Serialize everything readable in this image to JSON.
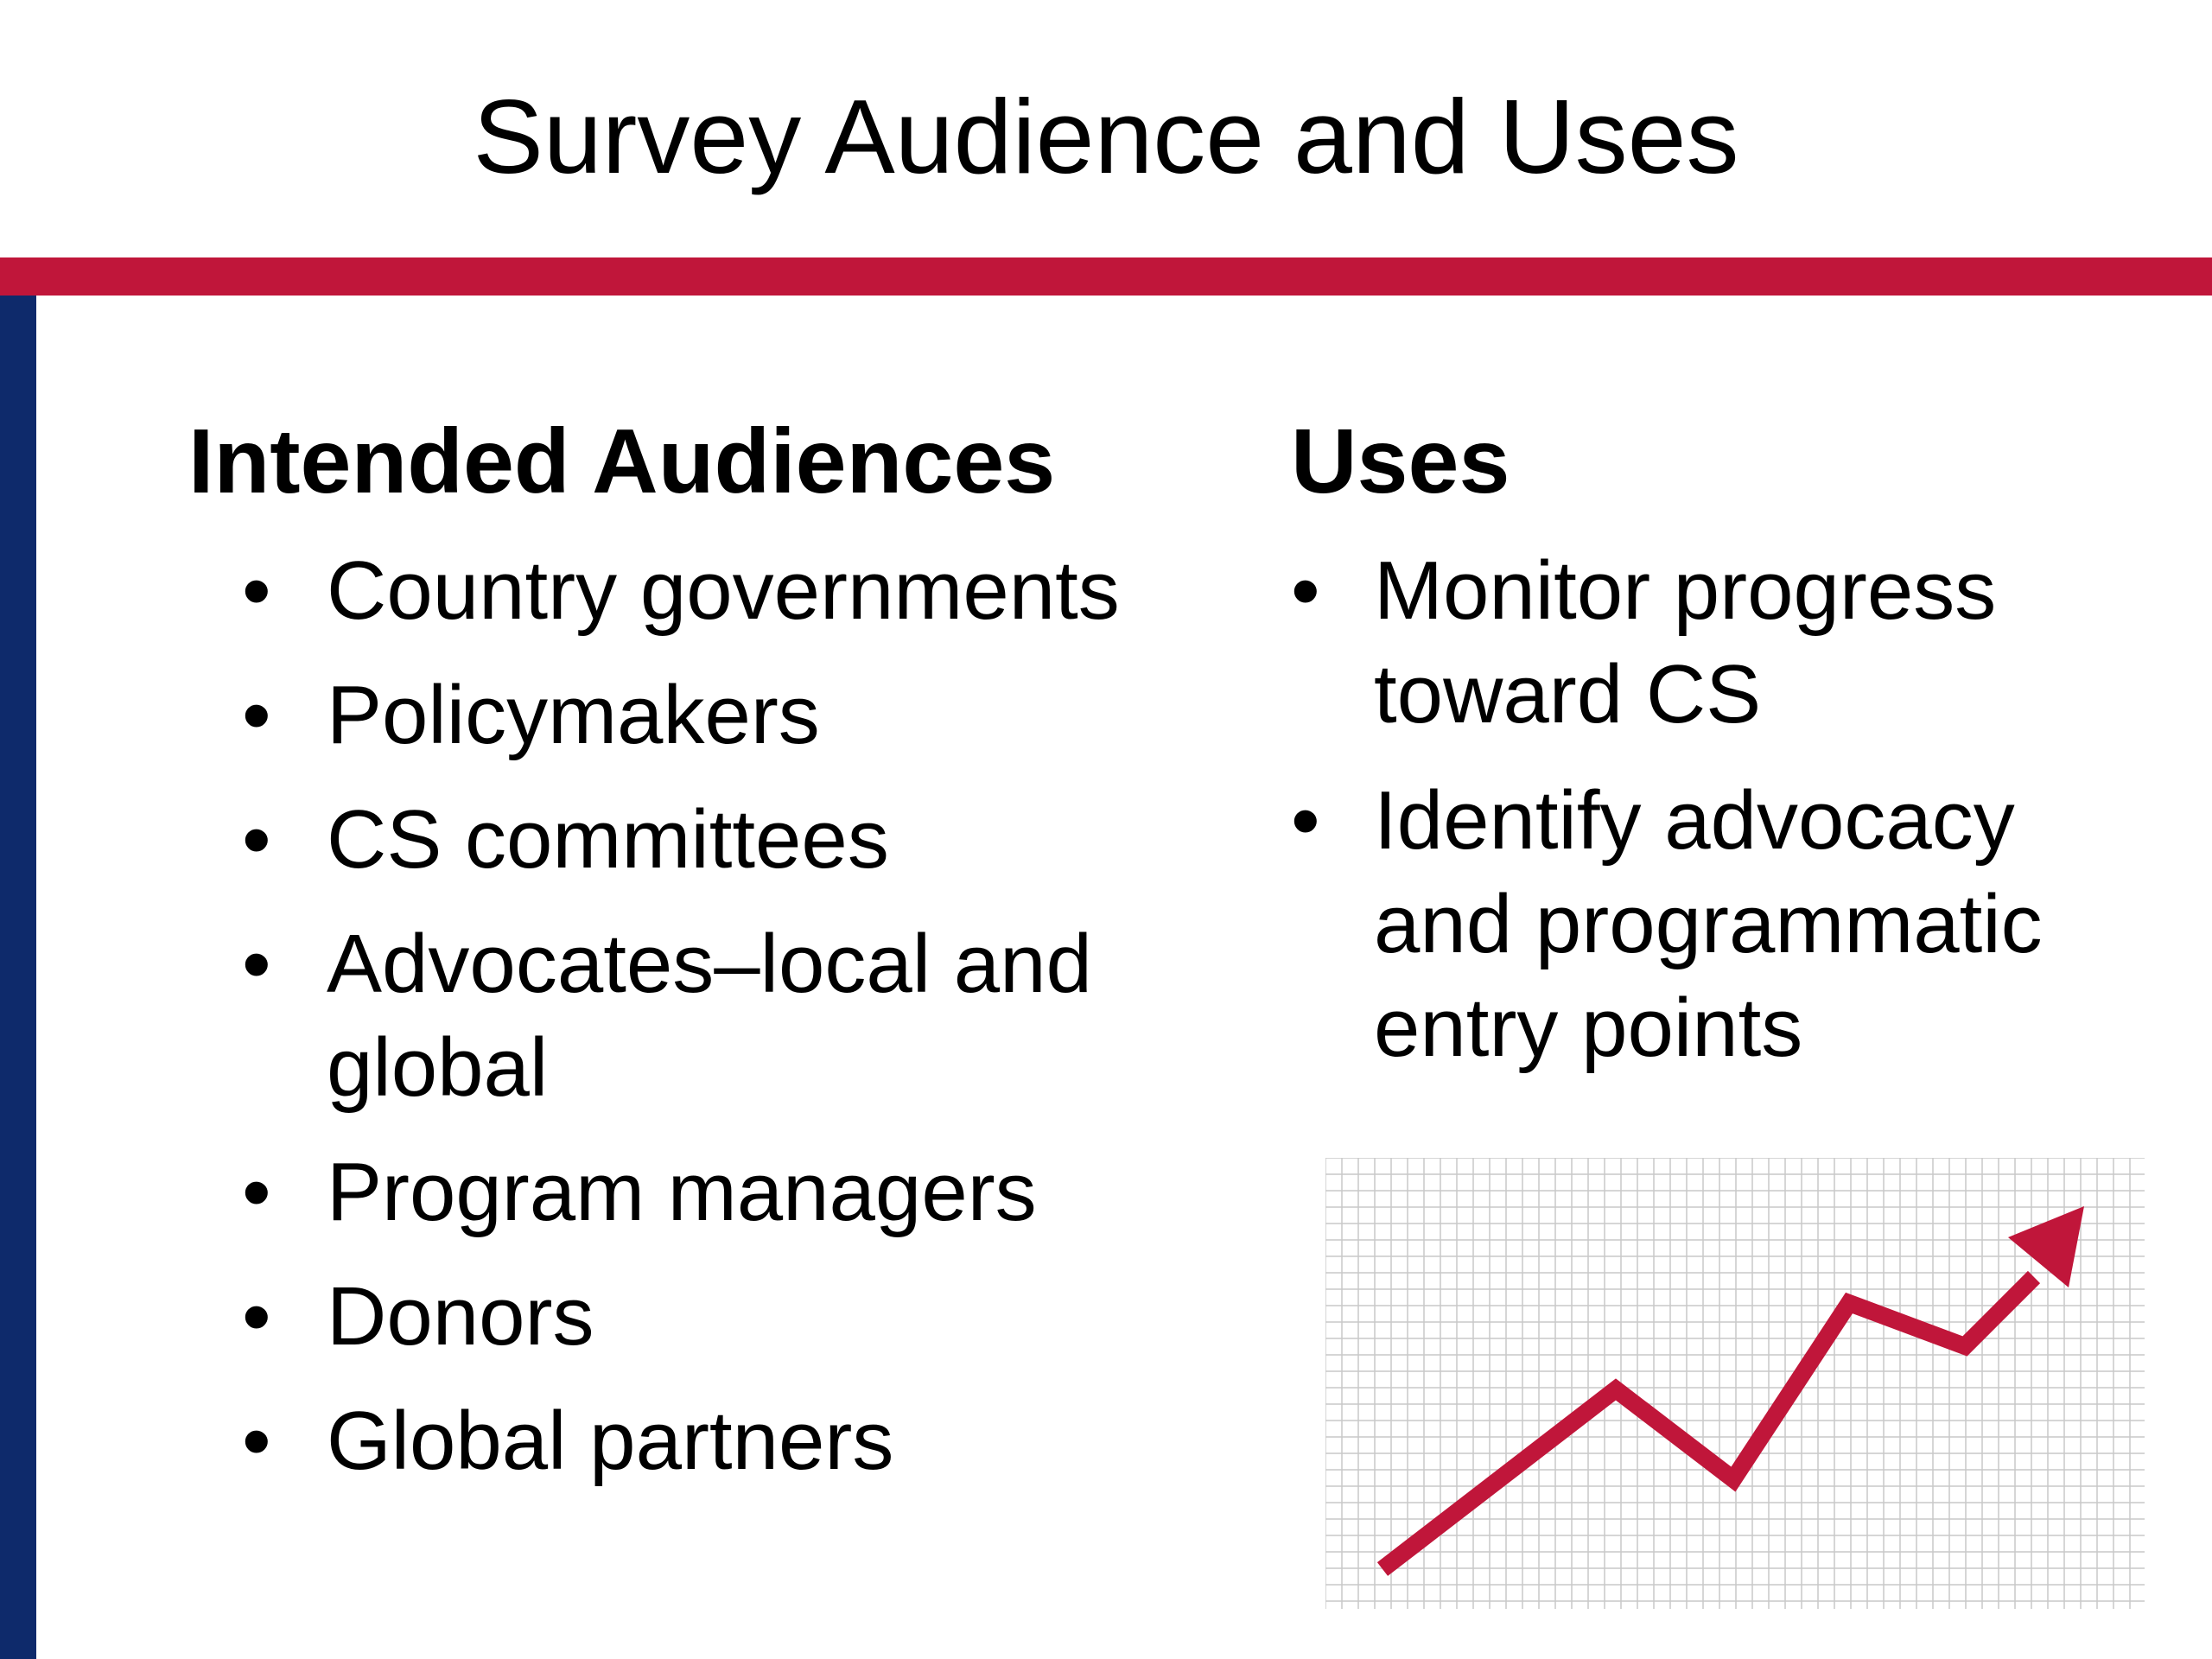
{
  "slide": {
    "title": "Survey Audience and Uses"
  },
  "theme": {
    "accent_red": "#C0163A",
    "side_navy": "#0E2A6B",
    "grid_color": "#C9C9C9"
  },
  "audiences": {
    "heading": "Intended Audiences",
    "items": [
      "Country governments",
      "Policymakers",
      "CS committees",
      "Advocates–local and global",
      "Program managers",
      "Donors",
      "Global partners"
    ]
  },
  "uses": {
    "heading": "Uses",
    "items": [
      "Monitor progress toward CS",
      "Identify advocacy and programmatic entry points"
    ]
  },
  "graphic": {
    "icon": "upward-trend-arrow-icon"
  }
}
